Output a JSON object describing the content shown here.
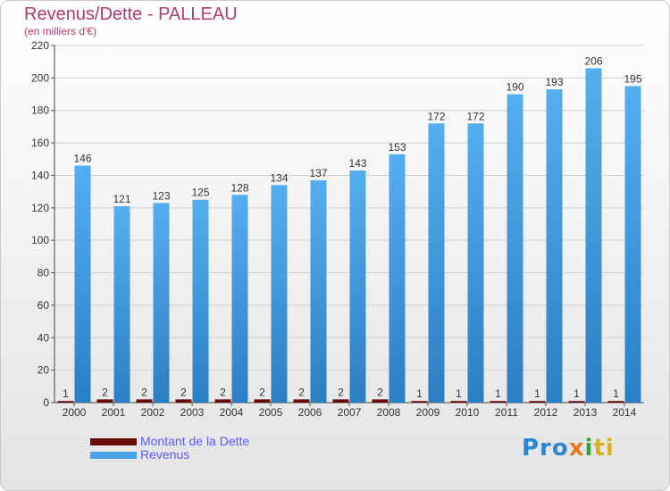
{
  "title": "Revenus/Dette - PALLEAU",
  "subtitle": "(en milliers d'€)",
  "logo": {
    "part1": "Pro",
    "part2": "x",
    "part3": "i",
    "part4": "ti"
  },
  "colors": {
    "debt": "#6b0a0a",
    "revenue": "#4aa3e8",
    "revenue_dark": "#2b7fc4",
    "title": "#b03a6e",
    "legend_text": "#5a5aff"
  },
  "chart_data": {
    "type": "bar",
    "title": "Revenus/Dette - PALLEAU",
    "subtitle": "(en milliers d'€)",
    "categories": [
      "2000",
      "2001",
      "2002",
      "2003",
      "2004",
      "2005",
      "2006",
      "2007",
      "2008",
      "2009",
      "2010",
      "2011",
      "2012",
      "2013",
      "2014"
    ],
    "series": [
      {
        "name": "Montant de la Dette",
        "values": [
          1,
          2,
          2,
          2,
          2,
          2,
          2,
          2,
          2,
          1,
          1,
          1,
          1,
          1,
          1
        ]
      },
      {
        "name": "Revenus",
        "values": [
          146,
          121,
          123,
          125,
          128,
          134,
          137,
          143,
          153,
          172,
          172,
          190,
          193,
          206,
          195
        ]
      }
    ],
    "ylim": [
      0,
      220
    ],
    "yticks": [
      0,
      20,
      40,
      60,
      80,
      100,
      120,
      140,
      160,
      180,
      200,
      220
    ],
    "grid": true,
    "legend": "bottom-left"
  }
}
